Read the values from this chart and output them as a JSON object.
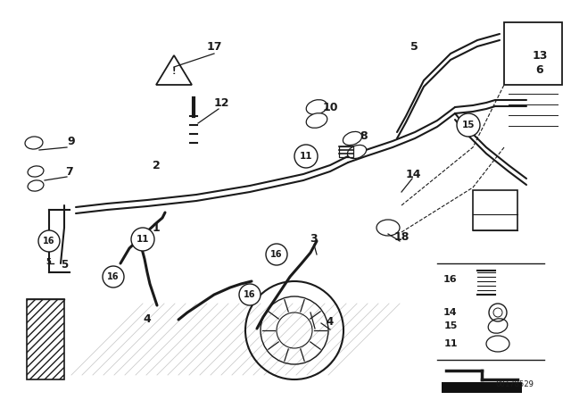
{
  "bg_color": "#ffffff",
  "line_color": "#1a1a1a",
  "fig_width": 6.4,
  "fig_height": 4.48,
  "dpi": 100
}
